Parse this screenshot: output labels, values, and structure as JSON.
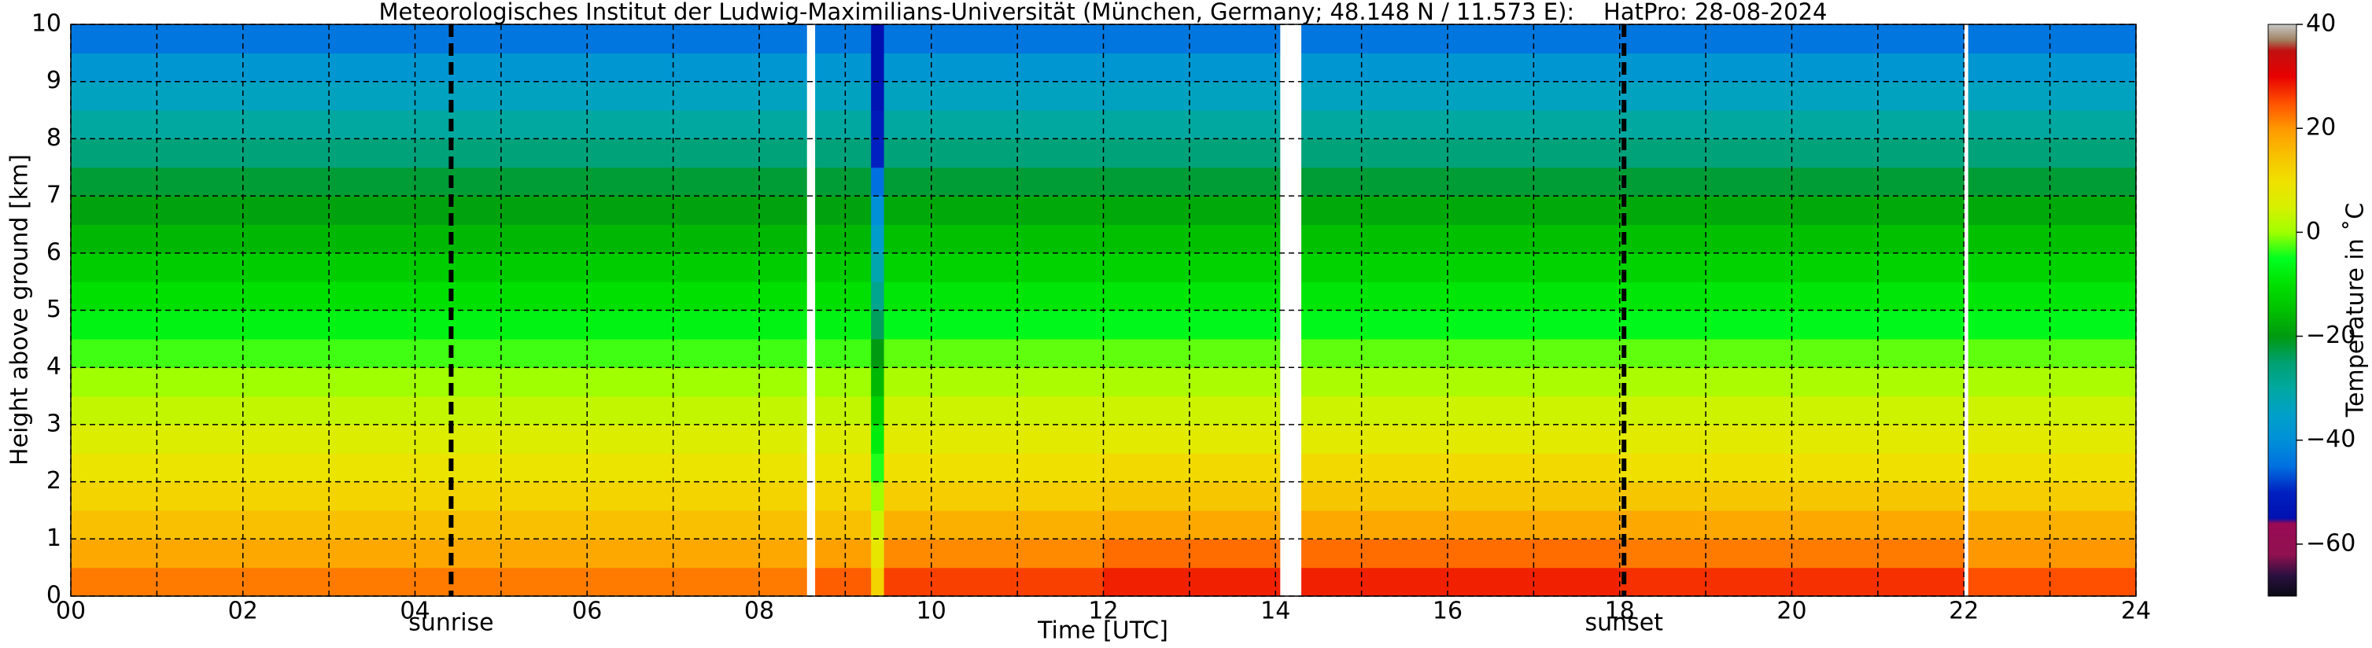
{
  "chart_data": {
    "type": "heatmap",
    "title": "Meteorologisches Institut der Ludwig-Maximilians-Universität (München, Germany; 48.148 N / 11.573 E):    HatPro: 28-08-2024",
    "x_label": "Time [UTC]",
    "y_label": "Height above ground [km]",
    "colorbar_label": "Temperature in ˚C",
    "xlim": [
      0,
      24
    ],
    "ylim": [
      0,
      10
    ],
    "xticks": [
      {
        "value": 0,
        "label": "00"
      },
      {
        "value": 2,
        "label": "02"
      },
      {
        "value": 4,
        "label": "04"
      },
      {
        "value": 6,
        "label": "06"
      },
      {
        "value": 8,
        "label": "08"
      },
      {
        "value": 10,
        "label": "10"
      },
      {
        "value": 12,
        "label": "12"
      },
      {
        "value": 14,
        "label": "14"
      },
      {
        "value": 16,
        "label": "16"
      },
      {
        "value": 18,
        "label": "18"
      },
      {
        "value": 20,
        "label": "20"
      },
      {
        "value": 22,
        "label": "22"
      },
      {
        "value": 24,
        "label": "24"
      }
    ],
    "xminorticks": [
      1,
      3,
      5,
      7,
      9,
      11,
      13,
      15,
      17,
      19,
      21,
      23
    ],
    "yticks": [
      0,
      1,
      2,
      3,
      4,
      5,
      6,
      7,
      8,
      9,
      10
    ],
    "grid": true,
    "x_edges": [
      0,
      4,
      8.55,
      8.65,
      9.3,
      9.45,
      12,
      14.05,
      14.3,
      18,
      22,
      22.05,
      24
    ],
    "y_edges": [
      0,
      0.5,
      1,
      1.5,
      2,
      2.5,
      3,
      3.5,
      4,
      4.5,
      5,
      5.5,
      6,
      6.5,
      7,
      7.5,
      8,
      8.5,
      9,
      9.5,
      10
    ],
    "z": [
      [
        22,
        22,
        null,
        24,
        12,
        26,
        28,
        null,
        28,
        27,
        null,
        25
      ],
      [
        18,
        18,
        null,
        19,
        8,
        21,
        23,
        null,
        23,
        22,
        null,
        20
      ],
      [
        15,
        15,
        null,
        15,
        4,
        17,
        18,
        null,
        18,
        18,
        null,
        17
      ],
      [
        12,
        12,
        null,
        12,
        0,
        13,
        14,
        null,
        14,
        14,
        null,
        13
      ],
      [
        9,
        9,
        null,
        9,
        -4,
        10,
        11,
        null,
        11,
        10,
        null,
        10
      ],
      [
        6,
        6,
        null,
        6,
        -8,
        7,
        7,
        null,
        7,
        7,
        null,
        7
      ],
      [
        3,
        3,
        null,
        3,
        -12,
        4,
        4,
        null,
        4,
        4,
        null,
        4
      ],
      [
        0,
        0,
        null,
        0,
        -16,
        1,
        1,
        null,
        1,
        1,
        null,
        1
      ],
      [
        -3,
        -3,
        null,
        -3,
        -20,
        -2,
        -2,
        null,
        -2,
        -2,
        null,
        -2
      ],
      [
        -7,
        -7,
        null,
        -7,
        -24,
        -6,
        -6,
        null,
        -6,
        -6,
        null,
        -6
      ],
      [
        -10,
        -10,
        null,
        -10,
        -28,
        -9,
        -9,
        null,
        -9,
        -9,
        null,
        -9
      ],
      [
        -13,
        -13,
        null,
        -13,
        -32,
        -12,
        -12,
        null,
        -12,
        -12,
        null,
        -12
      ],
      [
        -16,
        -16,
        null,
        -16,
        -36,
        -15,
        -15,
        null,
        -15,
        -15,
        null,
        -15
      ],
      [
        -19,
        -19,
        null,
        -19,
        -40,
        -18,
        -18,
        null,
        -18,
        -18,
        null,
        -18
      ],
      [
        -22,
        -22,
        null,
        -22,
        -45,
        -22,
        -22,
        null,
        -22,
        -22,
        null,
        -22
      ],
      [
        -26,
        -26,
        null,
        -26,
        -50,
        -26,
        -26,
        null,
        -26,
        -26,
        null,
        -26
      ],
      [
        -30,
        -30,
        null,
        -30,
        -52,
        -30,
        -30,
        null,
        -30,
        -30,
        null,
        -30
      ],
      [
        -34,
        -34,
        null,
        -34,
        -54,
        -34,
        -34,
        null,
        -34,
        -34,
        null,
        -34
      ],
      [
        -38,
        -38,
        null,
        -38,
        -55,
        -38,
        -38,
        null,
        -38,
        -38,
        null,
        -38
      ],
      [
        -44,
        -44,
        null,
        -44,
        -55,
        -44,
        -44,
        null,
        -44,
        -44,
        null,
        -44
      ]
    ],
    "clim": [
      -70,
      40
    ],
    "cticks": [
      {
        "value": -60,
        "label": "−60"
      },
      {
        "value": -40,
        "label": "−40"
      },
      {
        "value": -20,
        "label": "−20"
      },
      0,
      20,
      40
    ],
    "colorscale": [
      {
        "value": -70,
        "color": "#0a0a14"
      },
      {
        "value": -66,
        "color": "#2a1040"
      },
      {
        "value": -62,
        "color": "#901050"
      },
      {
        "value": -56,
        "color": "#9a0a55"
      },
      {
        "value": -55,
        "color": "#0010b0"
      },
      {
        "value": -50,
        "color": "#0020c0"
      },
      {
        "value": -45,
        "color": "#0070e0"
      },
      {
        "value": -40,
        "color": "#0090d8"
      },
      {
        "value": -35,
        "color": "#00a0c8"
      },
      {
        "value": -30,
        "color": "#00a8a0"
      },
      {
        "value": -25,
        "color": "#00a070"
      },
      {
        "value": -20,
        "color": "#009a10"
      },
      {
        "value": -15,
        "color": "#00c000"
      },
      {
        "value": -10,
        "color": "#00e000"
      },
      {
        "value": -5,
        "color": "#00ff20"
      },
      {
        "value": 0,
        "color": "#a0ff00"
      },
      {
        "value": 5,
        "color": "#d8f000"
      },
      {
        "value": 10,
        "color": "#f0e000"
      },
      {
        "value": 15,
        "color": "#f8c000"
      },
      {
        "value": 20,
        "color": "#ff9800"
      },
      {
        "value": 25,
        "color": "#ff5000"
      },
      {
        "value": 30,
        "color": "#e80000"
      },
      {
        "value": 35,
        "color": "#c01010"
      },
      {
        "value": 37,
        "color": "#a08060"
      },
      {
        "value": 40,
        "color": "#c8c8c8"
      }
    ],
    "annotations": [
      {
        "label": "sunrise",
        "x": 4.42
      },
      {
        "label": "sunset",
        "x": 18.05
      }
    ]
  }
}
